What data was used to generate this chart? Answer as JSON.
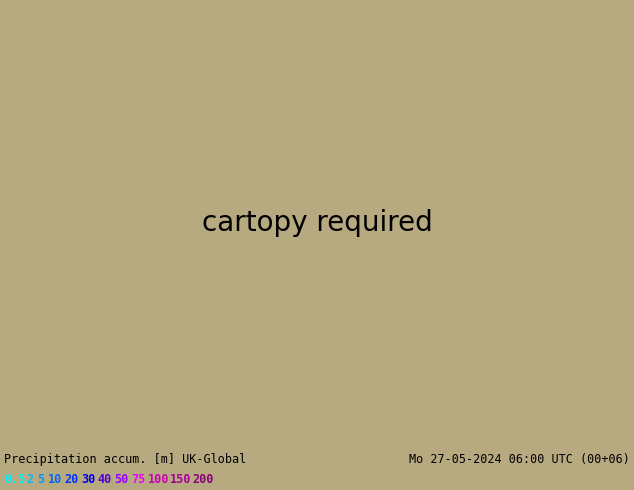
{
  "title_left": "Precipitation accum. [m] UK-Global",
  "title_right": "Mo 27-05-2024 06:00 UTC (00+06)",
  "colorbar_labels": [
    "0.5",
    "2",
    "5",
    "10",
    "20",
    "30",
    "40",
    "50",
    "75",
    "100",
    "150",
    "200"
  ],
  "colorbar_colors": [
    "#00eeff",
    "#00bbff",
    "#0099ff",
    "#0066ff",
    "#0033ff",
    "#0000ee",
    "#5500cc",
    "#9900ff",
    "#ee00ff",
    "#cc00bb",
    "#aa0099",
    "#880077"
  ],
  "bg_outer": "#b8aa80",
  "bg_domain_white": "#f8f8f8",
  "bg_land_green": "#b0cc80",
  "bg_land_gray": "#c8c8b8",
  "bg_sea_gray": "#b8c8d0",
  "bottom_bar": "#d0d0d0",
  "isobar_red": "#cc0000",
  "isobar_blue": "#0000cc",
  "precip_light": "#88ddff",
  "precip_mid": "#44bbff",
  "precip_dark": "#2299ee"
}
